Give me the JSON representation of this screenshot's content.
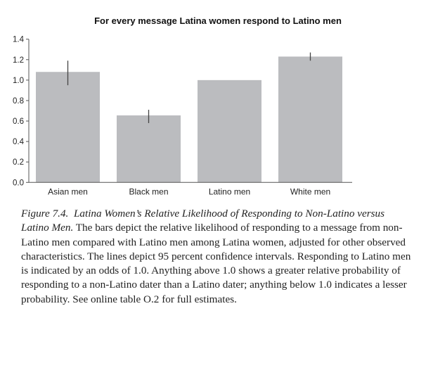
{
  "chart_data": {
    "type": "bar",
    "title": "For every message Latina women respond to Latino men",
    "categories": [
      "Asian men",
      "Black men",
      "Latino men",
      "White men"
    ],
    "values": [
      1.08,
      0.655,
      1.0,
      1.23
    ],
    "error_bars": [
      [
        0.95,
        1.19
      ],
      [
        0.58,
        0.71
      ],
      null,
      [
        1.19,
        1.27
      ]
    ],
    "ylim": [
      0,
      1.4
    ],
    "yticks": [
      "0.0",
      "0.2",
      "0.4",
      "0.6",
      "0.8",
      "1.0",
      "1.2",
      "1.4"
    ],
    "xlabel": "",
    "ylabel": "",
    "grid": false,
    "bar_color": "#bbbcbf",
    "error_color": "#444444"
  },
  "caption": {
    "figure_label": "Figure 7.4.",
    "figure_title": "Latina Women’s Relative Likelihood of Responding to Non-Latino versus Latino Men.",
    "body": "The bars depict the relative likelihood of responding to a message from non-Latino men compared with Latino men among Latina women, adjusted for other observed characteristics. The lines depict 95 percent confidence intervals. Responding to Latino men is indicated by an odds of 1.0. Anything above 1.0 shows a greater relative probability of responding to a non-Latino dater than a Latino dater; anything below 1.0 indicates a lesser probability. See online table O.2 for full estimates."
  }
}
